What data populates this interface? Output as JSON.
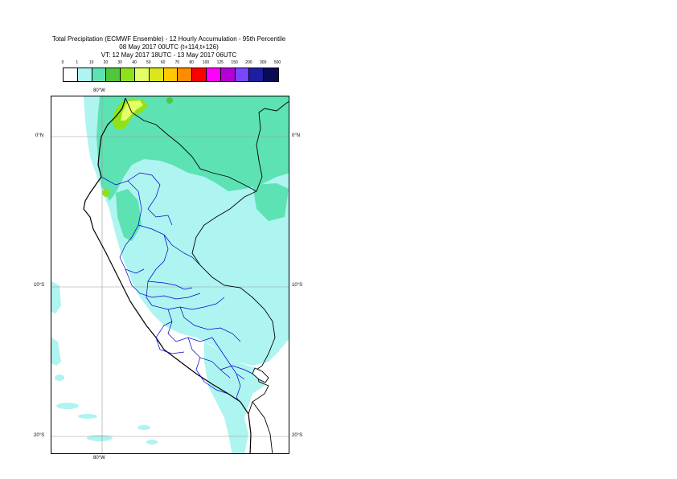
{
  "title": {
    "line1": "Total Precipitation (ECMWF Ensemble) - 12 Hourly Accumulation - 95th Percentile",
    "line2": "08 May 2017 00UTC (t+114,t+126)",
    "line3": "VT: 12 May 2017 18UTC - 13 May 2017 06UTC"
  },
  "legend": {
    "labels": [
      "0",
      "1",
      "10",
      "20",
      "30",
      "40",
      "50",
      "60",
      "70",
      "80",
      "100",
      "125",
      "150",
      "200",
      "300",
      "500"
    ],
    "colors": [
      "#ffffff",
      "#aef4f0",
      "#5de2b4",
      "#50c63c",
      "#8ee21c",
      "#e4ff64",
      "#dce61c",
      "#ffc800",
      "#ff8c00",
      "#ff0000",
      "#ff00ff",
      "#b400d2",
      "#7846ff",
      "#1e1ea0",
      "#0a0a55"
    ]
  },
  "map": {
    "lon_labels": [
      "80°W",
      "80°W"
    ],
    "lat_labels": [
      "0°N",
      "10°S",
      "20°S"
    ],
    "colors": {
      "light": "#aef4f0",
      "medium": "#5de2b4",
      "green": "#8ee21c",
      "yellow": "#e4ff64",
      "coast": "#000000",
      "region": "#0000cc"
    }
  }
}
